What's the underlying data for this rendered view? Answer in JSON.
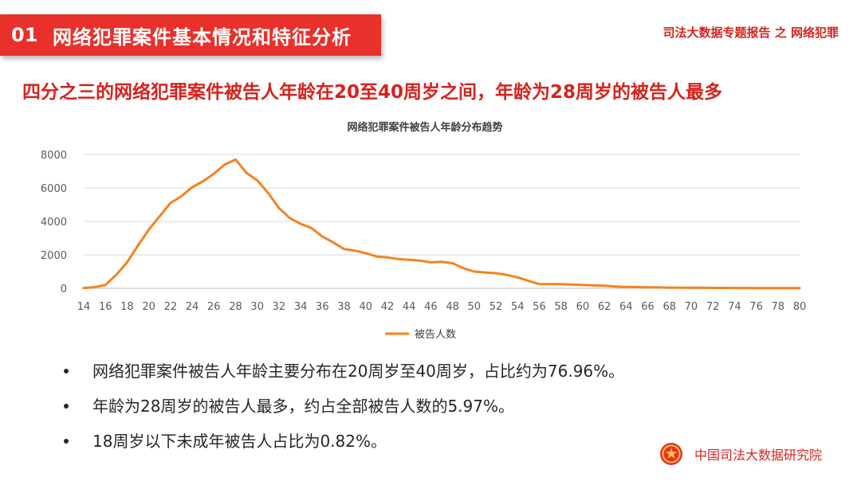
{
  "header": {
    "section_number": "01",
    "section_title": "网络犯罪案件基本情况和特征分析",
    "report_label": "司法大数据专题报告 之 网络犯罪"
  },
  "headline": "四分之三的网络犯罪案件被告人年龄在20至40周岁之间，年龄为28周岁的被告人最多",
  "chart_data": {
    "type": "line",
    "title": "网络犯罪案件被告人年龄分布趋势",
    "xlabel": "",
    "ylabel": "",
    "x": [
      14,
      15,
      16,
      17,
      18,
      19,
      20,
      21,
      22,
      23,
      24,
      25,
      26,
      27,
      28,
      29,
      30,
      31,
      32,
      33,
      34,
      35,
      36,
      37,
      38,
      39,
      40,
      41,
      42,
      43,
      44,
      45,
      46,
      47,
      48,
      49,
      50,
      51,
      52,
      53,
      54,
      55,
      56,
      57,
      58,
      59,
      60,
      61,
      62,
      63,
      64,
      65,
      66,
      67,
      68,
      69,
      70,
      71,
      72,
      73,
      74,
      75,
      76,
      77,
      78,
      79,
      80
    ],
    "x_tick_labels": [
      "14",
      "16",
      "18",
      "20",
      "22",
      "24",
      "26",
      "28",
      "30",
      "32",
      "34",
      "36",
      "38",
      "40",
      "42",
      "44",
      "46",
      "48",
      "50",
      "52",
      "54",
      "56",
      "58",
      "60",
      "62",
      "64",
      "66",
      "68",
      "70",
      "72",
      "74",
      "76",
      "78",
      "80"
    ],
    "y_tick_labels": [
      "0",
      "2000",
      "4000",
      "6000",
      "8000"
    ],
    "ylim": [
      0,
      8000
    ],
    "grid": true,
    "legend_position": "bottom",
    "series": [
      {
        "name": "被告人数",
        "color": "#f5821f",
        "values": [
          20,
          60,
          200,
          800,
          1550,
          2550,
          3500,
          4300,
          5100,
          5500,
          6050,
          6400,
          6850,
          7400,
          7700,
          6900,
          6450,
          5700,
          4800,
          4200,
          3850,
          3600,
          3100,
          2750,
          2350,
          2250,
          2100,
          1900,
          1850,
          1750,
          1700,
          1650,
          1550,
          1580,
          1500,
          1200,
          1000,
          950,
          900,
          800,
          650,
          450,
          250,
          250,
          250,
          220,
          200,
          170,
          150,
          110,
          80,
          70,
          60,
          50,
          40,
          35,
          30,
          28,
          25,
          22,
          20,
          18,
          15,
          14,
          12,
          10,
          10
        ]
      }
    ]
  },
  "bullets": [
    "网络犯罪案件被告人年龄主要分布在20周岁至40周岁，占比约为76.96%。",
    "年龄为28周岁的被告人最多，约占全部被告人数的5.97%。",
    "18周岁以下未成年被告人占比为0.82%。"
  ],
  "footer": {
    "brand_name": "中国司法大数据研究院",
    "emblem_icon": "national-emblem-icon"
  }
}
